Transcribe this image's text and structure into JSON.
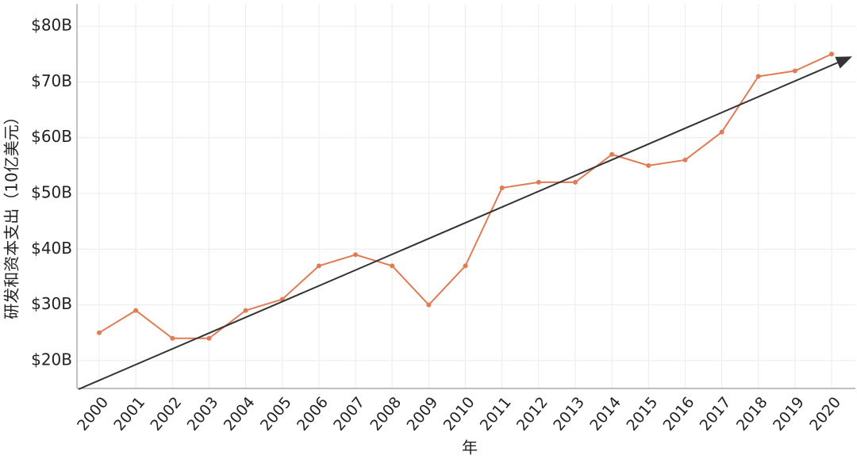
{
  "chart_data": {
    "type": "line",
    "y_label": "研发和资本支出（10亿美元）",
    "x_label": "年",
    "categories": [
      "2000",
      "2001",
      "2002",
      "2003",
      "2004",
      "2005",
      "2006",
      "2007",
      "2008",
      "2009",
      "2010",
      "2011",
      "2012",
      "2013",
      "2014",
      "2015",
      "2016",
      "2017",
      "2018",
      "2019",
      "2020"
    ],
    "series": [
      {
        "color": "#e07b54",
        "values": [
          25,
          29,
          24,
          24,
          29,
          31,
          37,
          39,
          37,
          30,
          37,
          51,
          52,
          52,
          57,
          55,
          56,
          61,
          71,
          72,
          75
        ]
      }
    ],
    "ylim": [
      15,
      84
    ],
    "yticks": [
      {
        "value": 20,
        "label": "$20B"
      },
      {
        "value": 30,
        "label": "$30B"
      },
      {
        "value": 40,
        "label": "$40B"
      },
      {
        "value": 50,
        "label": "$50B"
      },
      {
        "value": 60,
        "label": "$60B"
      },
      {
        "value": 70,
        "label": "$70B"
      },
      {
        "value": 80,
        "label": "$80B"
      }
    ],
    "grid": true
  }
}
